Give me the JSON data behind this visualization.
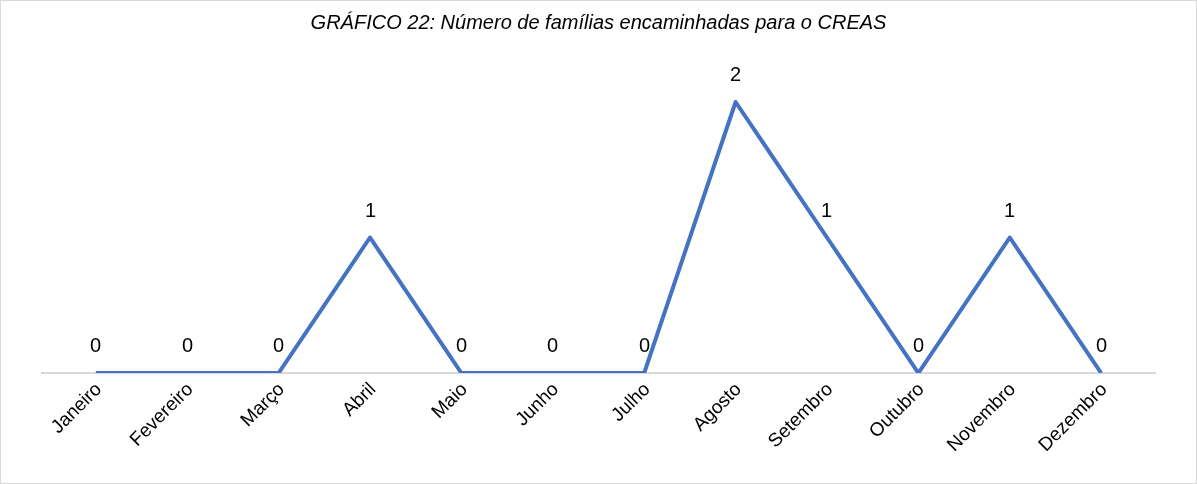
{
  "chart_data": {
    "type": "line",
    "title": "GRÁFICO 22: Número de famílias encaminhadas para o CREAS",
    "categories": [
      "Janeiro",
      "Fevereiro",
      "Março",
      "Abril",
      "Maio",
      "Junho",
      "Julho",
      "Agosto",
      "Setembro",
      "Outubro",
      "Novembro",
      "Dezembro"
    ],
    "series": [
      {
        "color": "#4472c4",
        "values": [
          0,
          0,
          0,
          1,
          0,
          0,
          0,
          2,
          1,
          0,
          1,
          0
        ]
      }
    ],
    "data_labels": true,
    "grid": false,
    "marker": "none",
    "line_style": "solid"
  }
}
